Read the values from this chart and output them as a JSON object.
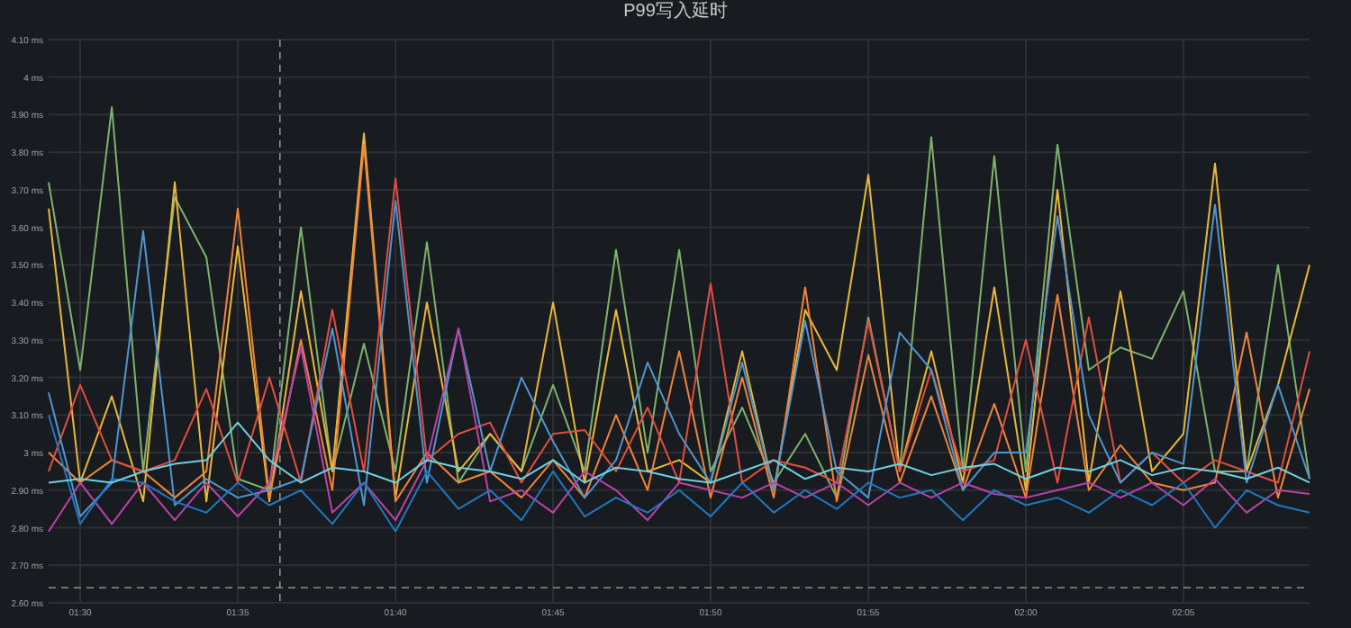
{
  "chart_data": {
    "type": "line",
    "title": "P99写入延时",
    "x": [
      1.4833,
      1.5,
      1.5167,
      1.5333,
      1.55,
      1.5667,
      1.5833,
      1.6,
      1.6167,
      1.6333,
      1.65,
      1.6667,
      1.6833,
      1.7,
      1.7167,
      1.7333,
      1.75,
      1.7667,
      1.7833,
      1.8,
      1.8167,
      1.8333,
      1.85,
      1.8667,
      1.8833,
      1.9,
      1.9167,
      1.9333,
      1.95,
      1.9667,
      1.9833,
      2,
      2.0167,
      2.0333,
      2.05,
      2.0667,
      2.0833,
      2.1,
      2.1167,
      2.1333,
      2.15
    ],
    "series": [
      {
        "color": "#7eb26d",
        "values": [
          3.72,
          3.22,
          3.92,
          2.95,
          3.68,
          3.52,
          2.93,
          2.9,
          3.6,
          2.95,
          3.29,
          2.95,
          3.56,
          2.92,
          3.05,
          2.95,
          3.18,
          2.95,
          3.54,
          3.0,
          3.54,
          2.95,
          3.12,
          2.92,
          3.05,
          2.88,
          3.36,
          2.95,
          3.84,
          2.95,
          3.79,
          2.95,
          3.82,
          3.22,
          3.28,
          3.25,
          3.43,
          2.95,
          2.95,
          3.5,
          2.93
        ]
      },
      {
        "color": "#eab839",
        "values": [
          3.65,
          2.92,
          3.15,
          2.87,
          3.72,
          2.87,
          3.55,
          2.87,
          3.43,
          2.95,
          3.85,
          2.88,
          3.4,
          2.95,
          3.05,
          2.95,
          3.4,
          2.92,
          3.38,
          2.95,
          2.98,
          2.92,
          3.27,
          2.9,
          3.38,
          3.22,
          3.74,
          2.95,
          3.27,
          2.92,
          3.44,
          2.9,
          3.7,
          2.92,
          3.43,
          2.95,
          3.05,
          3.77,
          2.95,
          3.18,
          3.5
        ]
      },
      {
        "color": "#ef843c",
        "values": [
          3.0,
          2.92,
          2.98,
          2.95,
          2.88,
          2.95,
          3.65,
          2.88,
          3.3,
          2.9,
          3.82,
          2.87,
          3.0,
          2.92,
          2.95,
          2.88,
          2.98,
          2.88,
          3.1,
          2.9,
          3.27,
          2.88,
          3.2,
          2.88,
          3.44,
          2.87,
          3.26,
          2.92,
          3.15,
          2.9,
          3.13,
          2.88,
          3.42,
          2.9,
          3.02,
          2.92,
          2.9,
          2.92,
          3.32,
          2.88,
          3.17
        ]
      },
      {
        "color": "#e24d42",
        "values": [
          2.95,
          3.18,
          2.98,
          2.95,
          2.98,
          3.17,
          2.92,
          3.2,
          2.92,
          3.38,
          2.95,
          3.73,
          2.98,
          3.05,
          3.08,
          2.92,
          3.05,
          3.06,
          2.95,
          3.12,
          2.92,
          3.45,
          2.92,
          2.98,
          2.96,
          2.92,
          3.35,
          2.95,
          3.22,
          2.95,
          2.98,
          3.3,
          2.92,
          3.36,
          2.92,
          3.0,
          2.92,
          2.98,
          2.95,
          2.92,
          3.27
        ]
      },
      {
        "color": "#5195ce",
        "values": [
          3.16,
          2.83,
          2.92,
          3.59,
          2.86,
          2.93,
          2.88,
          2.9,
          2.93,
          3.33,
          2.86,
          3.67,
          2.92,
          3.33,
          2.95,
          3.2,
          3.03,
          2.88,
          2.98,
          3.24,
          3.05,
          2.92,
          3.24,
          2.9,
          3.35,
          2.95,
          2.88,
          3.32,
          3.22,
          2.9,
          3.0,
          3.0,
          3.63,
          3.1,
          2.92,
          3.0,
          2.97,
          3.66,
          2.92,
          3.18,
          2.93
        ]
      },
      {
        "color": "#ba43a9",
        "values": [
          2.79,
          2.92,
          2.81,
          2.92,
          2.82,
          2.92,
          2.83,
          2.92,
          3.28,
          2.84,
          2.92,
          2.82,
          2.98,
          3.33,
          2.87,
          2.9,
          2.84,
          2.95,
          2.9,
          2.82,
          2.92,
          2.9,
          2.88,
          2.92,
          2.88,
          2.92,
          2.86,
          2.92,
          2.88,
          2.92,
          2.89,
          2.88,
          2.9,
          2.92,
          2.88,
          2.92,
          2.86,
          2.93,
          2.84,
          2.9,
          2.89
        ]
      },
      {
        "color": "#1f78c1",
        "values": [
          3.1,
          2.81,
          2.93,
          2.92,
          2.87,
          2.84,
          2.92,
          2.86,
          2.9,
          2.81,
          2.92,
          2.79,
          2.95,
          2.85,
          2.9,
          2.82,
          2.95,
          2.83,
          2.88,
          2.84,
          2.9,
          2.83,
          2.92,
          2.84,
          2.9,
          2.85,
          2.92,
          2.88,
          2.9,
          2.82,
          2.9,
          2.86,
          2.88,
          2.84,
          2.9,
          2.86,
          2.92,
          2.8,
          2.9,
          2.86,
          2.84
        ]
      },
      {
        "color": "#6ed0e0",
        "values": [
          2.92,
          2.93,
          2.92,
          2.95,
          2.97,
          2.98,
          3.08,
          2.98,
          2.92,
          2.96,
          2.95,
          2.92,
          2.98,
          2.96,
          2.95,
          2.93,
          2.98,
          2.92,
          2.96,
          2.95,
          2.93,
          2.92,
          2.95,
          2.98,
          2.93,
          2.96,
          2.95,
          2.97,
          2.94,
          2.96,
          2.97,
          2.93,
          2.96,
          2.95,
          2.98,
          2.94,
          2.96,
          2.95,
          2.93,
          2.96,
          2.92
        ]
      }
    ],
    "xlim": [
      1.4833,
      2.15
    ],
    "xticks": [
      {
        "value": 1.5,
        "label": "01:30"
      },
      {
        "value": 1.5833,
        "label": "01:35"
      },
      {
        "value": 1.6667,
        "label": "01:40"
      },
      {
        "value": 1.75,
        "label": "01:45"
      },
      {
        "value": 1.8333,
        "label": "01:50"
      },
      {
        "value": 1.9167,
        "label": "01:55"
      },
      {
        "value": 2,
        "label": "02:00"
      },
      {
        "value": 2.0833,
        "label": "02:05"
      }
    ],
    "ylim": [
      2.6,
      4.1
    ],
    "yticks": [
      {
        "value": 2.6,
        "label": "2.60 ms"
      },
      {
        "value": 2.7,
        "label": "2.70 ms"
      },
      {
        "value": 2.8,
        "label": "2.80 ms"
      },
      {
        "value": 2.9,
        "label": "2.90 ms"
      },
      {
        "value": 3,
        "label": "3 ms"
      },
      {
        "value": 3.1,
        "label": "3.10 ms"
      },
      {
        "value": 3.2,
        "label": "3.20 ms"
      },
      {
        "value": 3.3,
        "label": "3.30 ms"
      },
      {
        "value": 3.4,
        "label": "3.40 ms"
      },
      {
        "value": 3.5,
        "label": "3.50 ms"
      },
      {
        "value": 3.6,
        "label": "3.60 ms"
      },
      {
        "value": 3.7,
        "label": "3.70 ms"
      },
      {
        "value": 3.8,
        "label": "3.80 ms"
      },
      {
        "value": 3.9,
        "label": "3.90 ms"
      },
      {
        "value": 4,
        "label": "4 ms"
      },
      {
        "value": 4.1,
        "label": "4.10 ms"
      }
    ],
    "grid": true,
    "marker": "none",
    "line_style": "solid",
    "ref_lines": [
      {
        "axis": "x",
        "value": 1.6056,
        "color": "#8e8e8e",
        "line_style": "dashed"
      },
      {
        "axis": "y",
        "value": 2.64,
        "color": "#8e8e8e",
        "line_style": "dashed"
      }
    ]
  }
}
